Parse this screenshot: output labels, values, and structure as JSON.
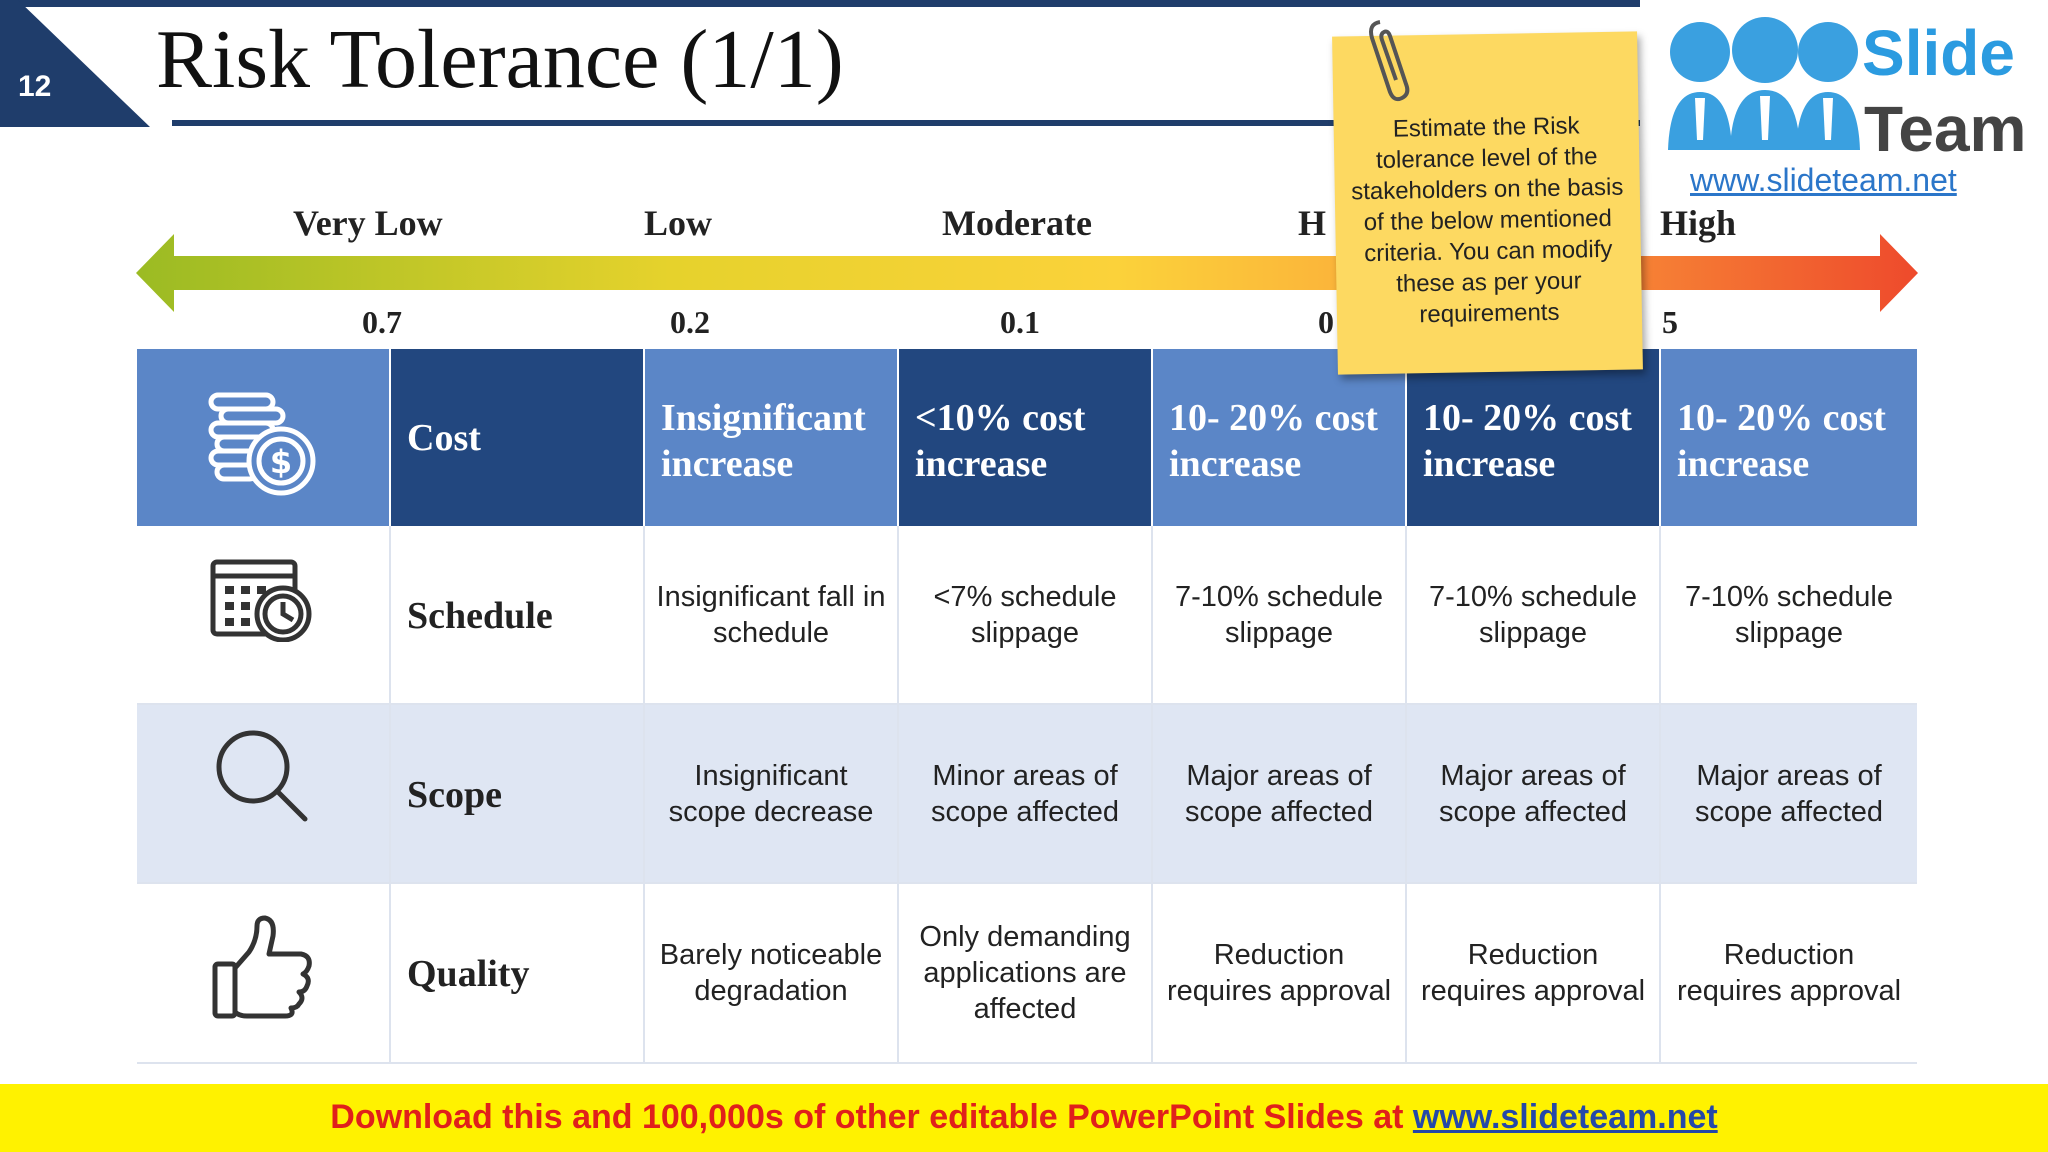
{
  "slide": {
    "number": "12",
    "title": "Risk Tolerance (1/1)"
  },
  "logo": {
    "word1": "Slide",
    "word2": "Team",
    "url": "www.slideteam.net"
  },
  "note": {
    "text": "Estimate the Risk tolerance level of the stakeholders on the basis of the below mentioned criteria. You can modify these as per your requirements"
  },
  "scale": {
    "labels": [
      "Very Low",
      "Low",
      "Moderate",
      "H",
      "High"
    ],
    "values": [
      "0.7",
      "0.2",
      "0.1",
      "0",
      "5"
    ]
  },
  "table": {
    "rows": [
      {
        "label": "Cost",
        "icon": "coins-dollar-icon",
        "cells": [
          "Insignificant increase",
          "<10% cost increase",
          "10- 20% cost increase",
          "10- 20% cost increase",
          "10- 20% cost increase"
        ]
      },
      {
        "label": "Schedule",
        "icon": "calendar-clock-icon",
        "cells": [
          "Insignificant fall in schedule",
          "<7% schedule slippage",
          "7-10% schedule slippage",
          "7-10% schedule slippage",
          "7-10% schedule slippage"
        ]
      },
      {
        "label": "Scope",
        "icon": "magnifier-icon",
        "cells": [
          "Insignificant scope decrease",
          "Minor areas of scope affected",
          "Major areas of scope affected",
          "Major areas of scope affected",
          "Major areas of scope affected"
        ]
      },
      {
        "label": "Quality",
        "icon": "thumbs-up-icon",
        "cells": [
          "Barely noticeable degradation",
          "Only demanding applications are affected",
          "Reduction requires approval",
          "Reduction requires approval",
          "Reduction requires approval"
        ]
      }
    ]
  },
  "footer": {
    "text": "Download this and 100,000s of other editable PowerPoint Slides at",
    "link": "www.slideteam.net"
  },
  "colors": {
    "header_light": "#5b86c7",
    "header_dark": "#22477f",
    "shade": "#dfe6f3",
    "footer_bg": "#fff200",
    "footer_text": "#e0201b"
  }
}
